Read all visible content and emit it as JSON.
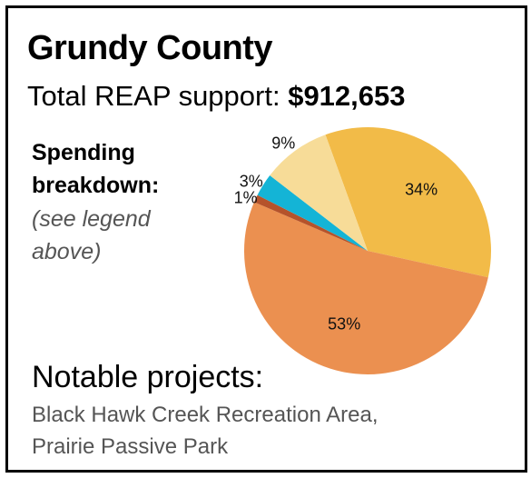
{
  "county": "Grundy County",
  "support_label": "Total REAP support:",
  "support_amount": "$912,653",
  "breakdown": {
    "title_line1": "Spending",
    "title_line2": "breakdown:",
    "note_line1": "(see legend",
    "note_line2": "above)"
  },
  "notable": {
    "title": "Notable projects:",
    "line1": "Black Hawk Creek Recreation Area,",
    "line2": "Prairie Passive Park"
  },
  "chart_data": {
    "type": "pie",
    "slices": [
      {
        "label": "34%",
        "value": 34,
        "color": "#f2bb48"
      },
      {
        "label": "53%",
        "value": 53,
        "color": "#eb9050"
      },
      {
        "label": "1%",
        "value": 1,
        "color": "#b5532b"
      },
      {
        "label": "3%",
        "value": 3,
        "color": "#14b4d6"
      },
      {
        "label": "9%",
        "value": 9,
        "color": "#f7dc98"
      }
    ]
  }
}
